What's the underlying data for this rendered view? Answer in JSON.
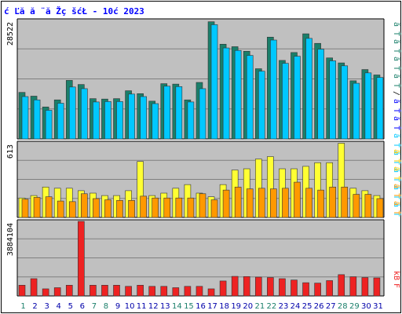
{
  "title": "ć Ľă  ă ¨ă Žç šćŁ  - 10ć   2023",
  "colors": {
    "background": "#c0c0c0",
    "outer": "#ffffff",
    "grid": "#808080",
    "visits": "#1a7f6a",
    "pages": "#00c8ff",
    "files": "#ffff33",
    "hits": "#ff9900",
    "kbytes": "#ee2222",
    "weekend_label": "#1a7f6a",
    "weekday_label": "#0000aa"
  },
  "legend_right_top": [
    {
      "text": "ă Ť",
      "color": "#1a7f6a"
    },
    {
      "text": "ă Ť",
      "color": "#1a7f6a"
    },
    {
      "text": "ă Ť",
      "color": "#1a7f6a"
    },
    {
      "text": "ă Ť",
      "color": "#1a7f6a"
    },
    {
      "text": "/",
      "color": "#000000"
    },
    {
      "text": "ă Ť",
      "color": "#0000ff"
    },
    {
      "text": "ă Ť",
      "color": "#0000ff"
    },
    {
      "text": "ă Ť",
      "color": "#00c8ff"
    },
    {
      "text": "ă Ť",
      "color": "#00c8ff"
    },
    {
      "text": "ă Ť",
      "color": "#00c8ff"
    },
    {
      "text": "ă Ť",
      "color": "#00c8ff"
    },
    {
      "text": "ă Ť",
      "color": "#00c8ff"
    }
  ],
  "legend_right_mid": [
    {
      "text": "ă Ť",
      "color": "#ffcc00"
    },
    {
      "text": "ă Ť",
      "color": "#ffcc00"
    },
    {
      "text": "ă Ť",
      "color": "#ff9900"
    },
    {
      "text": "ă Ť",
      "color": "#ff9900"
    }
  ],
  "legend_right_bot": [
    {
      "text": "kB",
      "color": "#ee2222"
    },
    {
      "text": "F",
      "color": "#ee2222"
    }
  ],
  "chart_data": [
    {
      "type": "bar",
      "title": "ć Ľă  ă ¨ă Žç šćŁ  - 10ć   2023",
      "ymax_label": "28522",
      "ylim": [
        0,
        28522
      ],
      "categories": [
        "1",
        "2",
        "3",
        "4",
        "5",
        "6",
        "7",
        "8",
        "9",
        "10",
        "11",
        "12",
        "13",
        "14",
        "15",
        "16",
        "17",
        "18",
        "19",
        "20",
        "21",
        "22",
        "23",
        "24",
        "25",
        "26",
        "27",
        "28",
        "29",
        "30",
        "31"
      ],
      "series": [
        {
          "values": [
            11200,
            10300,
            7700,
            9400,
            14100,
            13100,
            9700,
            9600,
            9700,
            11600,
            10900,
            9100,
            13300,
            13200,
            9400,
            13600,
            28200,
            22800,
            22200,
            21100,
            16900,
            24500,
            18900,
            20800,
            25300,
            23000,
            19500,
            18300,
            14000,
            16700,
            15400
          ]
        },
        {
          "values": [
            10200,
            9400,
            6900,
            8600,
            12500,
            12100,
            8900,
            9000,
            9000,
            10800,
            10200,
            8500,
            12700,
            12600,
            8900,
            12100,
            27500,
            21900,
            21300,
            20100,
            16300,
            23800,
            18200,
            19900,
            24200,
            21600,
            18800,
            17600,
            13400,
            15900,
            14800
          ]
        }
      ]
    },
    {
      "type": "bar",
      "ymax_label": "613",
      "ylim": [
        0,
        613
      ],
      "categories": [
        "1",
        "2",
        "3",
        "4",
        "5",
        "6",
        "7",
        "8",
        "9",
        "10",
        "11",
        "12",
        "13",
        "14",
        "15",
        "16",
        "17",
        "18",
        "19",
        "20",
        "21",
        "22",
        "23",
        "24",
        "25",
        "26",
        "27",
        "28",
        "29",
        "30",
        "31"
      ],
      "series": [
        {
          "values": [
            160,
            180,
            250,
            240,
            240,
            220,
            200,
            180,
            180,
            220,
            460,
            180,
            200,
            240,
            270,
            200,
            170,
            270,
            390,
            400,
            480,
            500,
            400,
            400,
            420,
            450,
            450,
            610,
            240,
            220,
            180
          ]
        },
        {
          "values": [
            150,
            165,
            170,
            135,
            130,
            195,
            155,
            145,
            140,
            140,
            175,
            160,
            160,
            160,
            160,
            195,
            145,
            225,
            250,
            235,
            240,
            235,
            240,
            290,
            240,
            225,
            250,
            250,
            190,
            190,
            155
          ]
        }
      ]
    },
    {
      "type": "bar",
      "ymax_label": "3884104",
      "ylim": [
        0,
        3884104
      ],
      "categories": [
        "1",
        "2",
        "3",
        "4",
        "5",
        "6",
        "7",
        "8",
        "9",
        "10",
        "11",
        "12",
        "13",
        "14",
        "15",
        "16",
        "17",
        "18",
        "19",
        "20",
        "21",
        "22",
        "23",
        "24",
        "25",
        "26",
        "27",
        "28",
        "29",
        "30",
        "31"
      ],
      "series": [
        {
          "values": [
            560000,
            900000,
            370000,
            430000,
            560000,
            3884104,
            560000,
            560000,
            560000,
            500000,
            560000,
            500000,
            500000,
            430000,
            500000,
            500000,
            370000,
            780000,
            1020000,
            1010000,
            980000,
            960000,
            900000,
            830000,
            690000,
            670000,
            800000,
            1110000,
            1000000,
            960000,
            940000
          ]
        }
      ]
    }
  ]
}
